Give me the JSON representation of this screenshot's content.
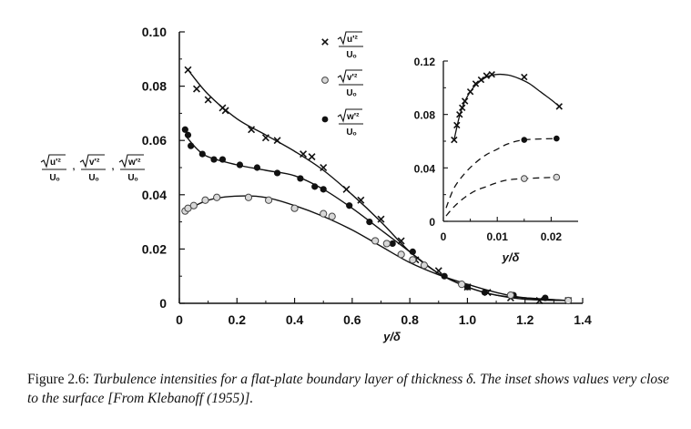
{
  "chart_data": [
    {
      "type": "scatter",
      "xlabel": "y/δ",
      "ylabel": [
        "√u'²/U₀",
        "√v'²/U₀",
        "√w'²/U₀"
      ],
      "xlim": [
        0,
        1.4
      ],
      "ylim": [
        0,
        0.1
      ],
      "xticks": [
        "0",
        "0.2",
        "0.4",
        "0.6",
        "0.8",
        "1.0",
        "1.2",
        "1.4"
      ],
      "yticks": [
        "0",
        "0.02",
        "0.04",
        "0.06",
        "0.08",
        "0.10"
      ],
      "legend_position": "top-center",
      "series": [
        {
          "name": "√u'²/U₀",
          "marker": "x",
          "points": [
            [
              0.03,
              0.086
            ],
            [
              0.06,
              0.079
            ],
            [
              0.1,
              0.075
            ],
            [
              0.15,
              0.072
            ],
            [
              0.16,
              0.071
            ],
            [
              0.25,
              0.064
            ],
            [
              0.3,
              0.061
            ],
            [
              0.34,
              0.06
            ],
            [
              0.43,
              0.055
            ],
            [
              0.46,
              0.054
            ],
            [
              0.5,
              0.05
            ],
            [
              0.58,
              0.042
            ],
            [
              0.63,
              0.038
            ],
            [
              0.7,
              0.031
            ],
            [
              0.77,
              0.023
            ],
            [
              0.82,
              0.016
            ],
            [
              0.9,
              0.012
            ],
            [
              1.0,
              0.006
            ],
            [
              1.07,
              0.004
            ],
            [
              1.15,
              0.002
            ],
            [
              1.25,
              0.001
            ],
            [
              1.35,
              0.001
            ]
          ],
          "curve": [
            [
              0.03,
              0.086
            ],
            [
              0.1,
              0.077
            ],
            [
              0.2,
              0.068
            ],
            [
              0.3,
              0.062
            ],
            [
              0.4,
              0.056
            ],
            [
              0.5,
              0.049
            ],
            [
              0.6,
              0.04
            ],
            [
              0.7,
              0.03
            ],
            [
              0.8,
              0.019
            ],
            [
              0.9,
              0.011
            ],
            [
              1.0,
              0.006
            ],
            [
              1.1,
              0.003
            ],
            [
              1.2,
              0.0015
            ],
            [
              1.35,
              0.001
            ]
          ]
        },
        {
          "name": "√w'²/U₀",
          "marker": "filled-circle",
          "points": [
            [
              0.02,
              0.064
            ],
            [
              0.03,
              0.062
            ],
            [
              0.04,
              0.058
            ],
            [
              0.08,
              0.055
            ],
            [
              0.12,
              0.053
            ],
            [
              0.15,
              0.053
            ],
            [
              0.21,
              0.051
            ],
            [
              0.27,
              0.05
            ],
            [
              0.34,
              0.048
            ],
            [
              0.42,
              0.046
            ],
            [
              0.47,
              0.043
            ],
            [
              0.5,
              0.042
            ],
            [
              0.59,
              0.036
            ],
            [
              0.66,
              0.03
            ],
            [
              0.74,
              0.022
            ],
            [
              0.81,
              0.019
            ],
            [
              0.92,
              0.01
            ],
            [
              1.0,
              0.006
            ],
            [
              1.06,
              0.004
            ],
            [
              1.16,
              0.003
            ],
            [
              1.27,
              0.002
            ],
            [
              1.35,
              0.001
            ]
          ],
          "curve": [
            [
              0.02,
              0.062
            ],
            [
              0.06,
              0.057
            ],
            [
              0.1,
              0.054
            ],
            [
              0.2,
              0.051
            ],
            [
              0.3,
              0.049
            ],
            [
              0.4,
              0.047
            ],
            [
              0.5,
              0.042
            ],
            [
              0.6,
              0.035
            ],
            [
              0.7,
              0.027
            ],
            [
              0.8,
              0.019
            ],
            [
              0.9,
              0.011
            ],
            [
              1.0,
              0.006
            ],
            [
              1.1,
              0.003
            ],
            [
              1.2,
              0.002
            ],
            [
              1.35,
              0.001
            ]
          ]
        },
        {
          "name": "√v'²/U₀",
          "marker": "open-circle",
          "points": [
            [
              0.02,
              0.034
            ],
            [
              0.03,
              0.035
            ],
            [
              0.05,
              0.036
            ],
            [
              0.09,
              0.038
            ],
            [
              0.13,
              0.039
            ],
            [
              0.24,
              0.039
            ],
            [
              0.31,
              0.038
            ],
            [
              0.4,
              0.035
            ],
            [
              0.5,
              0.033
            ],
            [
              0.53,
              0.032
            ],
            [
              0.68,
              0.023
            ],
            [
              0.72,
              0.022
            ],
            [
              0.77,
              0.018
            ],
            [
              0.81,
              0.016
            ],
            [
              0.85,
              0.014
            ],
            [
              0.98,
              0.007
            ],
            [
              1.15,
              0.003
            ],
            [
              1.35,
              0.001
            ]
          ],
          "curve": [
            [
              0.02,
              0.034
            ],
            [
              0.1,
              0.038
            ],
            [
              0.2,
              0.0395
            ],
            [
              0.3,
              0.039
            ],
            [
              0.4,
              0.036
            ],
            [
              0.5,
              0.032
            ],
            [
              0.6,
              0.027
            ],
            [
              0.7,
              0.021
            ],
            [
              0.8,
              0.015
            ],
            [
              0.9,
              0.0105
            ],
            [
              1.0,
              0.007
            ],
            [
              1.1,
              0.004
            ],
            [
              1.2,
              0.002
            ],
            [
              1.35,
              0.001
            ]
          ]
        }
      ]
    },
    {
      "type": "scatter",
      "role": "inset",
      "xlabel": "y/δ",
      "xlim": [
        0,
        0.025
      ],
      "ylim": [
        0,
        0.12
      ],
      "xticks": [
        "0",
        "0.01",
        "0.02"
      ],
      "yticks": [
        "0",
        "0.04",
        "0.08",
        "0.12"
      ],
      "series": [
        {
          "name": "√u'²/U₀",
          "marker": "x",
          "line": "solid",
          "points": [
            [
              0.002,
              0.061
            ],
            [
              0.0025,
              0.072
            ],
            [
              0.003,
              0.08
            ],
            [
              0.0035,
              0.085
            ],
            [
              0.004,
              0.09
            ],
            [
              0.005,
              0.097
            ],
            [
              0.006,
              0.103
            ],
            [
              0.007,
              0.106
            ],
            [
              0.008,
              0.109
            ],
            [
              0.009,
              0.11
            ],
            [
              0.015,
              0.108
            ],
            [
              0.0215,
              0.086
            ]
          ],
          "curve": [
            [
              0.002,
              0.061
            ],
            [
              0.003,
              0.079
            ],
            [
              0.004,
              0.09
            ],
            [
              0.005,
              0.097
            ],
            [
              0.006,
              0.102
            ],
            [
              0.008,
              0.108
            ],
            [
              0.01,
              0.11
            ],
            [
              0.012,
              0.1095
            ],
            [
              0.014,
              0.107
            ],
            [
              0.016,
              0.103
            ],
            [
              0.018,
              0.097
            ],
            [
              0.02,
              0.091
            ],
            [
              0.0215,
              0.086
            ]
          ]
        },
        {
          "name": "√w'²/U₀",
          "marker": "filled-circle",
          "line": "dashed",
          "points": [
            [
              0.015,
              0.061
            ],
            [
              0.021,
              0.062
            ]
          ],
          "curve": [
            [
              0.0005,
              0.01
            ],
            [
              0.002,
              0.025
            ],
            [
              0.004,
              0.036
            ],
            [
              0.006,
              0.044
            ],
            [
              0.008,
              0.05
            ],
            [
              0.01,
              0.054
            ],
            [
              0.012,
              0.058
            ],
            [
              0.015,
              0.061
            ],
            [
              0.021,
              0.062
            ]
          ]
        },
        {
          "name": "√v'²/U₀",
          "marker": "open-circle",
          "line": "dashed",
          "points": [
            [
              0.015,
              0.032
            ],
            [
              0.021,
              0.033
            ]
          ],
          "curve": [
            [
              0.0005,
              0.004
            ],
            [
              0.002,
              0.011
            ],
            [
              0.004,
              0.018
            ],
            [
              0.006,
              0.023
            ],
            [
              0.008,
              0.026
            ],
            [
              0.01,
              0.029
            ],
            [
              0.012,
              0.031
            ],
            [
              0.015,
              0.032
            ],
            [
              0.021,
              0.033
            ]
          ]
        }
      ]
    }
  ],
  "legend": {
    "entries": [
      {
        "marker": "x",
        "symbol": "×",
        "num_var": "u'",
        "den": "Uₒ"
      },
      {
        "marker": "open-circle",
        "symbol": "○",
        "num_var": "v'",
        "den": "Uₒ"
      },
      {
        "marker": "filled-circle",
        "symbol": "●",
        "num_var": "w'",
        "den": "Uₒ"
      }
    ]
  },
  "y_axis_label": {
    "num_vars": [
      "u'",
      "v'",
      "w'"
    ],
    "den": "Uₒ",
    "separator": ","
  },
  "caption": {
    "label": "Figure 2.6:",
    "text": "Turbulence intensities for a flat-plate boundary layer of thickness δ. The inset shows values very close to the surface [From Klebanoff (1955)]."
  },
  "colors": {
    "ink": "#111111",
    "open_marker_fill": "#d8d8d8"
  }
}
